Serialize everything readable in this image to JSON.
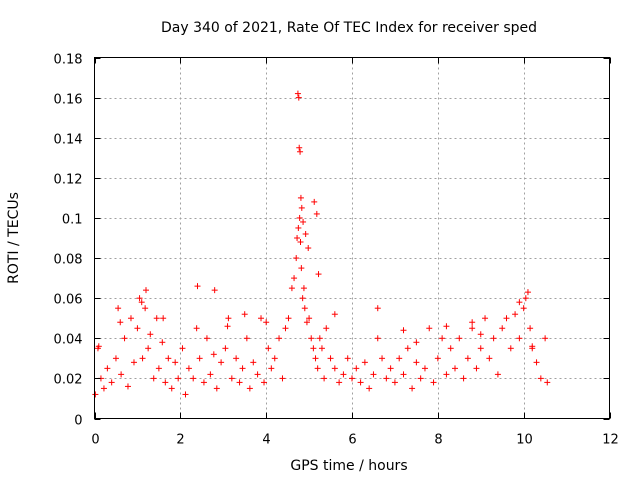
{
  "chart_data": {
    "type": "scatter",
    "title": "Day 340 of 2021, Rate Of TEC Index for receiver sped",
    "xlabel": "GPS time / hours",
    "ylabel": "ROTI / TECUs",
    "xlim": [
      0,
      12
    ],
    "ylim": [
      0,
      0.18
    ],
    "xticks": [
      0,
      2,
      4,
      6,
      8,
      10,
      12
    ],
    "yticks": [
      0,
      0.02,
      0.04,
      0.06,
      0.08,
      0.1,
      0.12,
      0.14,
      0.16,
      0.18
    ],
    "xtick_labels": [
      "0",
      "2",
      "4",
      "6",
      "8",
      "10",
      "12"
    ],
    "ytick_labels": [
      "0",
      "0.02",
      "0.04",
      "0.06",
      "0.08",
      "0.1",
      "0.12",
      "0.14",
      "0.16",
      "0.18"
    ],
    "grid": true,
    "marker": "+",
    "marker_color": "#ff0000",
    "series": [
      {
        "name": "ROTI",
        "x": [
          0.02,
          0.08,
          0.15,
          0.22,
          0.3,
          0.4,
          0.5,
          0.55,
          0.62,
          0.7,
          0.78,
          0.85,
          0.92,
          1.0,
          1.05,
          1.12,
          1.18,
          1.25,
          1.3,
          1.38,
          1.45,
          1.5,
          1.58,
          1.65,
          1.72,
          1.8,
          1.88,
          1.95,
          2.05,
          2.12,
          2.2,
          2.3,
          2.38,
          2.45,
          2.55,
          2.62,
          2.7,
          2.78,
          2.85,
          2.95,
          3.05,
          3.12,
          3.2,
          3.3,
          3.38,
          3.45,
          3.55,
          3.62,
          3.7,
          3.8,
          3.88,
          3.95,
          4.05,
          4.12,
          4.2,
          4.3,
          4.38,
          4.45,
          4.52,
          4.6,
          4.65,
          4.7,
          4.72,
          4.75,
          4.78,
          4.8,
          4.82,
          4.85,
          4.88,
          4.9,
          4.95,
          5.0,
          5.05,
          5.1,
          5.15,
          5.2,
          5.25,
          5.3,
          5.35,
          5.4,
          5.5,
          5.6,
          5.7,
          5.8,
          5.9,
          6.0,
          6.1,
          6.2,
          6.3,
          6.4,
          6.5,
          6.6,
          6.7,
          6.8,
          6.9,
          7.0,
          7.1,
          7.2,
          7.3,
          7.4,
          7.5,
          7.6,
          7.7,
          7.8,
          7.9,
          8.0,
          8.1,
          8.2,
          8.3,
          8.4,
          8.5,
          8.6,
          8.7,
          8.8,
          8.9,
          9.0,
          9.1,
          9.2,
          9.3,
          9.4,
          9.5,
          9.6,
          9.7,
          9.8,
          9.9,
          10.0,
          10.05,
          10.1,
          10.15,
          10.2,
          10.3,
          10.4,
          10.5,
          10.55,
          4.74,
          4.76,
          4.77,
          4.79,
          4.81,
          4.83,
          4.86,
          4.92,
          4.98,
          5.12,
          5.18,
          5.22,
          0.1,
          0.6,
          1.2,
          2.4,
          2.8,
          3.5,
          4.0,
          6.6,
          7.5,
          8.2,
          9.0,
          9.9,
          1.1,
          1.6,
          3.1,
          5.6,
          7.2,
          8.8,
          10.2
        ],
        "y": [
          0.012,
          0.035,
          0.02,
          0.015,
          0.025,
          0.018,
          0.03,
          0.055,
          0.022,
          0.04,
          0.016,
          0.05,
          0.028,
          0.045,
          0.06,
          0.03,
          0.055,
          0.035,
          0.042,
          0.02,
          0.05,
          0.025,
          0.038,
          0.018,
          0.03,
          0.015,
          0.028,
          0.02,
          0.035,
          0.012,
          0.025,
          0.02,
          0.045,
          0.03,
          0.018,
          0.04,
          0.022,
          0.032,
          0.015,
          0.028,
          0.035,
          0.05,
          0.02,
          0.03,
          0.018,
          0.025,
          0.04,
          0.015,
          0.028,
          0.022,
          0.05,
          0.018,
          0.035,
          0.025,
          0.03,
          0.04,
          0.02,
          0.045,
          0.05,
          0.065,
          0.07,
          0.08,
          0.09,
          0.095,
          0.1,
          0.088,
          0.075,
          0.06,
          0.065,
          0.055,
          0.048,
          0.05,
          0.04,
          0.035,
          0.03,
          0.025,
          0.04,
          0.035,
          0.02,
          0.045,
          0.03,
          0.025,
          0.018,
          0.022,
          0.03,
          0.02,
          0.025,
          0.018,
          0.028,
          0.015,
          0.022,
          0.04,
          0.03,
          0.02,
          0.025,
          0.018,
          0.03,
          0.022,
          0.035,
          0.015,
          0.028,
          0.02,
          0.025,
          0.045,
          0.018,
          0.03,
          0.04,
          0.022,
          0.035,
          0.025,
          0.04,
          0.02,
          0.03,
          0.045,
          0.025,
          0.035,
          0.05,
          0.03,
          0.04,
          0.022,
          0.045,
          0.05,
          0.035,
          0.052,
          0.04,
          0.055,
          0.06,
          0.063,
          0.045,
          0.035,
          0.028,
          0.02,
          0.04,
          0.018,
          0.162,
          0.16,
          0.135,
          0.133,
          0.11,
          0.105,
          0.098,
          0.092,
          0.085,
          0.108,
          0.102,
          0.072,
          0.036,
          0.048,
          0.064,
          0.066,
          0.064,
          0.052,
          0.048,
          0.055,
          0.038,
          0.046,
          0.042,
          0.058,
          0.058,
          0.05,
          0.046,
          0.052,
          0.044,
          0.048,
          0.036
        ]
      }
    ]
  }
}
